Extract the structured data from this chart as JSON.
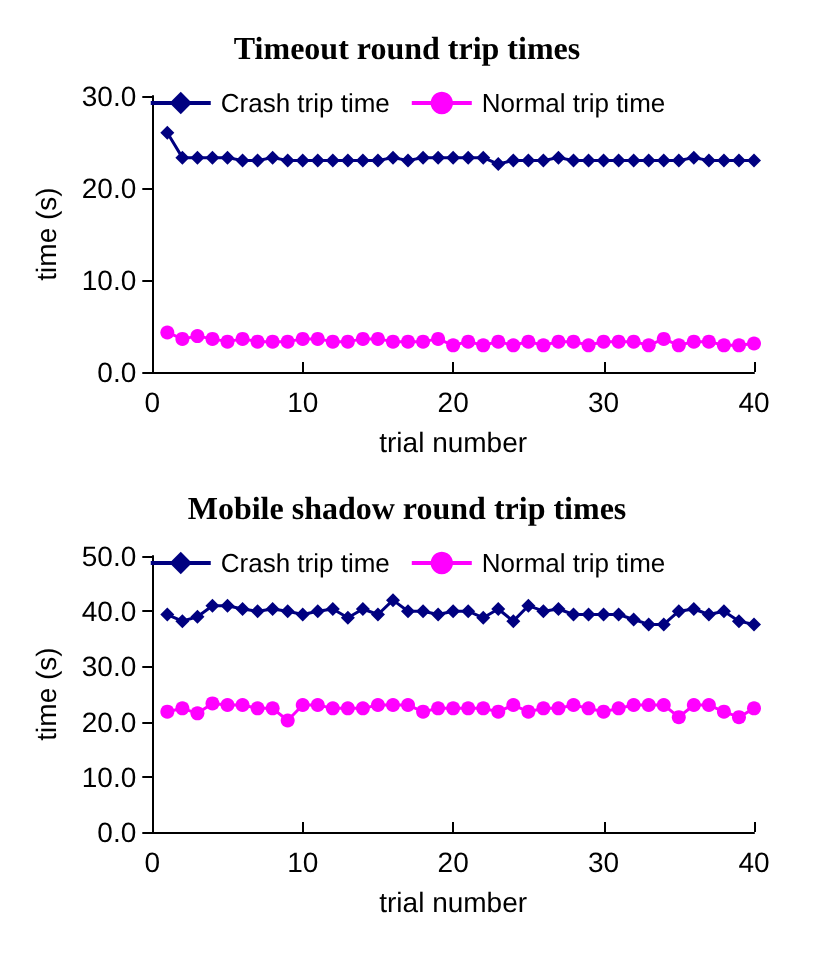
{
  "chart_data": [
    {
      "type": "line",
      "title": "Timeout round trip times",
      "xlabel": "trial number",
      "ylabel": "time (s)",
      "x": [
        1,
        2,
        3,
        4,
        5,
        6,
        7,
        8,
        9,
        10,
        11,
        12,
        13,
        14,
        15,
        16,
        17,
        18,
        19,
        20,
        21,
        22,
        23,
        24,
        25,
        26,
        27,
        28,
        29,
        30,
        31,
        32,
        33,
        34,
        35,
        36,
        37,
        38,
        39,
        40
      ],
      "series": [
        {
          "name": "Crash trip time",
          "color": "#000080",
          "marker": "diamond",
          "values": [
            26,
            23.3,
            23.3,
            23.3,
            23.3,
            23.0,
            23.0,
            23.3,
            23.0,
            23.0,
            23.0,
            23.0,
            23.0,
            23.0,
            23.0,
            23.3,
            23.0,
            23.3,
            23.3,
            23.3,
            23.3,
            23.3,
            22.6,
            23.0,
            23.0,
            23.0,
            23.3,
            23.0,
            23.0,
            23.0,
            23.0,
            23.0,
            23.0,
            23.0,
            23.0,
            23.3,
            23.0,
            23.0,
            23.0,
            23.0
          ]
        },
        {
          "name": "Normal trip time",
          "color": "#ff00ff",
          "marker": "circle",
          "values": [
            4.3,
            3.6,
            3.9,
            3.6,
            3.3,
            3.6,
            3.3,
            3.3,
            3.3,
            3.6,
            3.6,
            3.3,
            3.3,
            3.6,
            3.6,
            3.3,
            3.3,
            3.3,
            3.6,
            2.9,
            3.3,
            2.9,
            3.3,
            2.9,
            3.3,
            2.9,
            3.3,
            3.3,
            2.9,
            3.3,
            3.3,
            3.3,
            2.9,
            3.6,
            2.9,
            3.3,
            3.3,
            2.9,
            2.9,
            3.1
          ]
        }
      ],
      "xlim": [
        0,
        40
      ],
      "xticks": [
        0,
        10,
        20,
        30,
        40
      ],
      "ylim": [
        0,
        30
      ],
      "yticks": [
        {
          "value": 0,
          "label": "0.0"
        },
        {
          "value": 10,
          "label": "10.0"
        },
        {
          "value": 20,
          "label": "20.0"
        },
        {
          "value": 30,
          "label": "30.0"
        }
      ],
      "grid": false,
      "legend": "top"
    },
    {
      "type": "line",
      "title": "Mobile shadow round trip times",
      "xlabel": "trial number",
      "ylabel": "time (s)",
      "x": [
        1,
        2,
        3,
        4,
        5,
        6,
        7,
        8,
        9,
        10,
        11,
        12,
        13,
        14,
        15,
        16,
        17,
        18,
        19,
        20,
        21,
        22,
        23,
        24,
        25,
        26,
        27,
        28,
        29,
        30,
        31,
        32,
        33,
        34,
        35,
        36,
        37,
        38,
        39,
        40
      ],
      "series": [
        {
          "name": "Crash trip time",
          "color": "#000080",
          "marker": "diamond",
          "values": [
            39.4,
            38.2,
            39.0,
            41.0,
            41.0,
            40.4,
            40.0,
            40.4,
            40.0,
            39.4,
            40.0,
            40.4,
            38.8,
            40.4,
            39.4,
            42.0,
            40.0,
            40.0,
            39.4,
            40.0,
            40.0,
            38.8,
            40.4,
            38.2,
            41.0,
            40.0,
            40.4,
            39.4,
            39.4,
            39.4,
            39.4,
            38.5,
            37.6,
            37.6,
            40.0,
            40.4,
            39.4,
            40.0,
            38.2,
            37.6
          ]
        },
        {
          "name": "Normal trip time",
          "color": "#ff00ff",
          "marker": "circle",
          "values": [
            21.8,
            22.4,
            21.5,
            23.3,
            23.0,
            23.0,
            22.4,
            22.4,
            20.2,
            23.0,
            23.0,
            22.4,
            22.4,
            22.4,
            23.0,
            23.0,
            23.0,
            21.8,
            22.4,
            22.4,
            22.4,
            22.4,
            21.8,
            23.0,
            21.8,
            22.4,
            22.4,
            23.0,
            22.4,
            21.8,
            22.4,
            23.0,
            23.0,
            23.0,
            20.8,
            23.0,
            23.0,
            21.8,
            20.8,
            22.4
          ]
        }
      ],
      "xlim": [
        0,
        40
      ],
      "xticks": [
        0,
        10,
        20,
        30,
        40
      ],
      "ylim": [
        0,
        50
      ],
      "yticks": [
        {
          "value": 0,
          "label": "0.0"
        },
        {
          "value": 10,
          "label": "10.0"
        },
        {
          "value": 20,
          "label": "20.0"
        },
        {
          "value": 30,
          "label": "30.0"
        },
        {
          "value": 40,
          "label": "40.0"
        },
        {
          "value": 50,
          "label": "50.0"
        }
      ],
      "grid": false,
      "legend": "top"
    }
  ]
}
